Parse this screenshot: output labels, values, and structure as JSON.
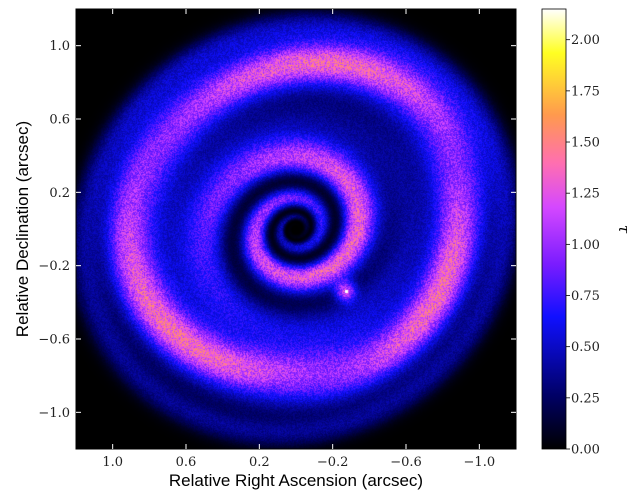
{
  "chart_data": {
    "type": "heatmap",
    "title": "",
    "xlabel": "Relative Right Ascension (arcsec)",
    "ylabel": "Relative Declination (arcsec)",
    "xlim": [
      1.2,
      -1.2
    ],
    "ylim": [
      -1.2,
      1.2
    ],
    "x_ticks": [
      1.0,
      0.6,
      0.2,
      -0.2,
      -0.6,
      -1.0
    ],
    "x_tick_labels": [
      "1.0",
      "0.6",
      "0.2",
      "−0.2",
      "−0.6",
      "−1.0"
    ],
    "y_ticks": [
      1.0,
      0.6,
      0.2,
      -0.2,
      -0.6,
      -1.0
    ],
    "y_tick_labels": [
      "1.0",
      "0.6",
      "0.2",
      "−0.2",
      "−0.6",
      "−1.0"
    ],
    "grid": false,
    "colorbar": {
      "label": "τ",
      "range": [
        0.0,
        2.15
      ],
      "colormap": "gnuplot2",
      "ticks": [
        0.0,
        0.25,
        0.5,
        0.75,
        1.0,
        1.25,
        1.5,
        1.75,
        2.0
      ],
      "tick_labels": [
        "0.00",
        "0.25",
        "0.50",
        "0.75",
        "1.00",
        "1.25",
        "1.50",
        "1.75",
        "2.00"
      ]
    },
    "features": [
      {
        "name": "central cavity",
        "center": [
          0.0,
          0.0
        ],
        "radius": 0.07,
        "tau": 0.0
      },
      {
        "name": "inner spiral",
        "r_min": 0.1,
        "r_max": 0.55,
        "tau_peak": 1.3
      },
      {
        "name": "gap",
        "r_min": 0.45,
        "r_max": 0.75,
        "tau": 0.35
      },
      {
        "name": "outer ring",
        "r_min": 0.75,
        "r_max": 1.1,
        "tau_peak": 1.35
      },
      {
        "name": "planet",
        "position": [
          -0.27,
          -0.34
        ]
      }
    ],
    "palette": {
      "black": "#000000",
      "navy": "#000064",
      "blue": "#1010ff",
      "purple": "#7a1cff",
      "magenta": "#d548ff",
      "pink": "#ff6fb0",
      "orange": "#ff9a4d",
      "yellow": "#ffff22",
      "white": "#ffffff"
    }
  }
}
